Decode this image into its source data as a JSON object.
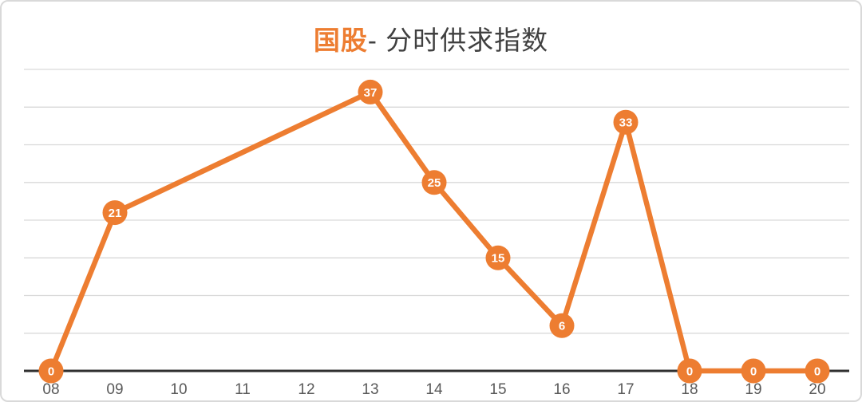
{
  "title": {
    "highlight": "国股",
    "rest": "- 分时供求指数",
    "highlight_color": "#ED7D31",
    "rest_color": "#404040"
  },
  "colors": {
    "accent_orange": "#ED7D31",
    "gridline": "#D9D9D9",
    "axis_line": "#303030",
    "tick_label": "#595959",
    "marker_label": "#FFFFFF",
    "card_border": "#D9D9D9",
    "background": "#FFFFFF"
  },
  "chart_data": {
    "type": "line",
    "title": "国股- 分时供求指数",
    "categories": [
      "08",
      "09",
      "10",
      "11",
      "12",
      "13",
      "14",
      "15",
      "16",
      "17",
      "18",
      "19",
      "20"
    ],
    "series": [
      {
        "values": [
          0,
          21,
          null,
          null,
          null,
          37,
          25,
          15,
          6,
          33,
          0,
          0,
          0
        ],
        "color": "#ED7D31"
      }
    ],
    "xlabel": "",
    "ylabel": "",
    "ylim": [
      0,
      40
    ],
    "grid_step": 5,
    "grid": true,
    "legend": "none",
    "y_axis_labels": "hidden",
    "data_labels": "inside-marker",
    "note": "no markers at 10-12; line runs straight from 09 to 13"
  }
}
